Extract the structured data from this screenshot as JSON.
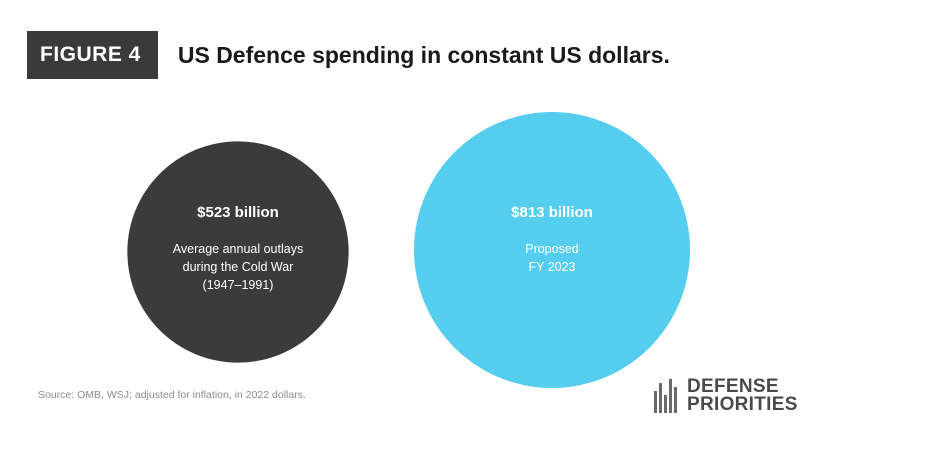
{
  "figure_label": "FIGURE 4",
  "title": "US Defence spending in constant US dollars.",
  "source": "Source: OMB, WSJ; adjusted for inflation, in 2022 dollars.",
  "logo": {
    "line1": "DEFENSE",
    "line2": "PRIORITIES"
  },
  "colors": {
    "cold_war": "#3b3b3b",
    "fy2023": "#55cdee",
    "badge": "#3a3a3a"
  },
  "chart_data": {
    "type": "bubble",
    "unit": "billion US dollars",
    "items": [
      {
        "value": 523,
        "value_label": "$523 billion",
        "description": [
          "Average annual outlays",
          "during the Cold War",
          "(1947–1991)"
        ],
        "color": "#3b3b3b"
      },
      {
        "value": 813,
        "value_label": "$813 billion",
        "description": [
          "Proposed",
          "FY 2023"
        ],
        "color": "#55cdee"
      }
    ]
  }
}
